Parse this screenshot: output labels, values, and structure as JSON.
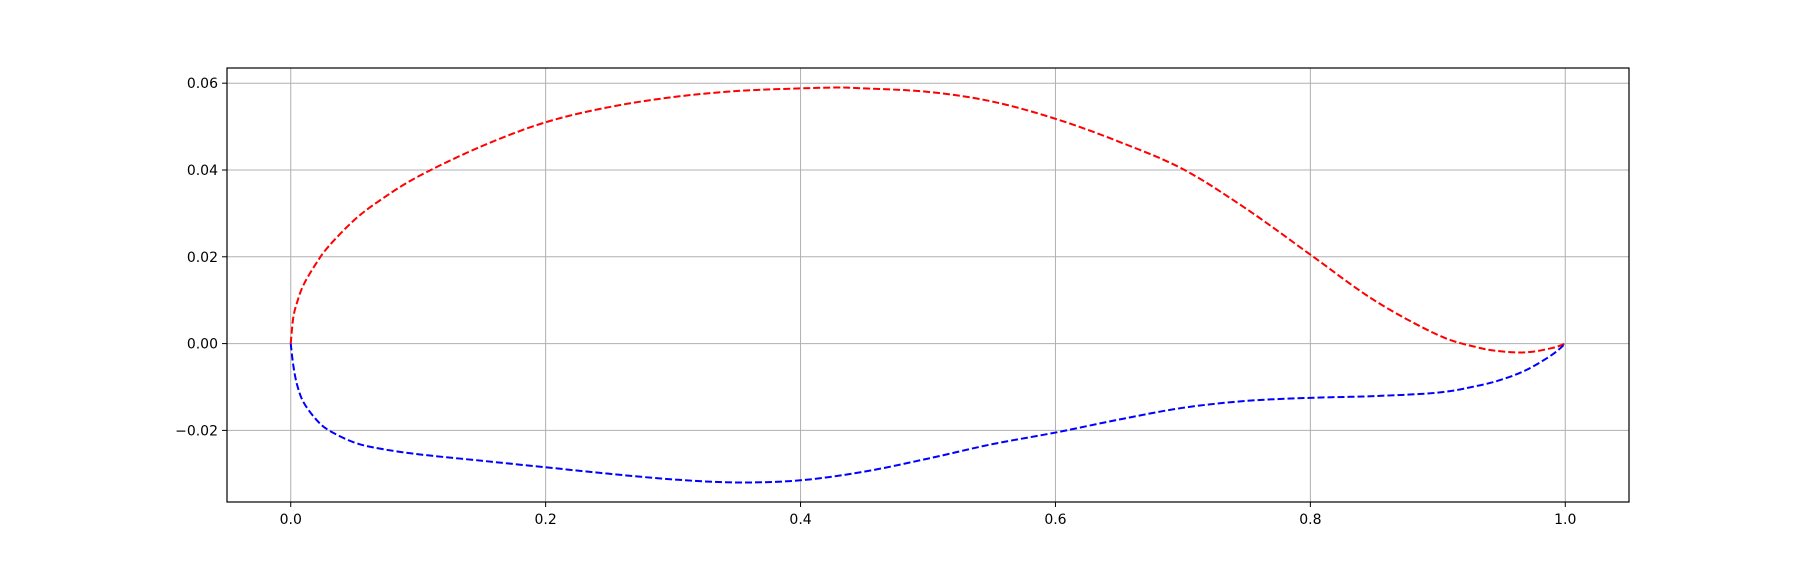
{
  "chart_data": {
    "type": "line",
    "title": "",
    "xlabel": "",
    "ylabel": "",
    "xlim": [
      -0.05,
      1.05
    ],
    "ylim": [
      -0.0365,
      0.0635
    ],
    "grid": true,
    "x_ticks": [
      0.0,
      0.2,
      0.4,
      0.6,
      0.8,
      1.0
    ],
    "x_tick_labels": [
      "0.0",
      "0.2",
      "0.4",
      "0.6",
      "0.8",
      "1.0"
    ],
    "y_ticks": [
      -0.02,
      0.0,
      0.02,
      0.04,
      0.06
    ],
    "y_tick_labels": [
      "−0.02",
      "0.00",
      "0.02",
      "0.04",
      "0.06"
    ],
    "series": [
      {
        "line_style": "dashed",
        "color": "#ff0000",
        "x": [
          0.0,
          0.002,
          0.005,
          0.01,
          0.02,
          0.03,
          0.05,
          0.07,
          0.1,
          0.15,
          0.2,
          0.25,
          0.3,
          0.35,
          0.4,
          0.43,
          0.45,
          0.5,
          0.55,
          0.6,
          0.65,
          0.7,
          0.75,
          0.8,
          0.85,
          0.9,
          0.93,
          0.95,
          0.97,
          0.99,
          1.0
        ],
        "y": [
          0.0,
          0.006,
          0.0095,
          0.0135,
          0.0185,
          0.0225,
          0.0285,
          0.033,
          0.0385,
          0.0455,
          0.051,
          0.0545,
          0.0568,
          0.0582,
          0.0588,
          0.059,
          0.0588,
          0.058,
          0.0558,
          0.0518,
          0.0465,
          0.0402,
          0.031,
          0.0205,
          0.01,
          0.002,
          -0.0008,
          -0.0018,
          -0.002,
          -0.001,
          0.0
        ]
      },
      {
        "line_style": "dashed",
        "color": "#0000ff",
        "x": [
          0.0,
          0.002,
          0.005,
          0.01,
          0.02,
          0.03,
          0.05,
          0.07,
          0.1,
          0.15,
          0.2,
          0.25,
          0.3,
          0.35,
          0.4,
          0.45,
          0.5,
          0.55,
          0.6,
          0.65,
          0.7,
          0.75,
          0.8,
          0.85,
          0.9,
          0.93,
          0.95,
          0.97,
          0.99,
          1.0
        ],
        "y": [
          0.0,
          -0.005,
          -0.0095,
          -0.0135,
          -0.0175,
          -0.02,
          -0.0228,
          -0.0242,
          -0.0255,
          -0.027,
          -0.0285,
          -0.03,
          -0.0313,
          -0.032,
          -0.0315,
          -0.0295,
          -0.0265,
          -0.0232,
          -0.0205,
          -0.0175,
          -0.0148,
          -0.0132,
          -0.0125,
          -0.0121,
          -0.0113,
          -0.0098,
          -0.0083,
          -0.006,
          -0.0025,
          0.0
        ]
      }
    ]
  }
}
